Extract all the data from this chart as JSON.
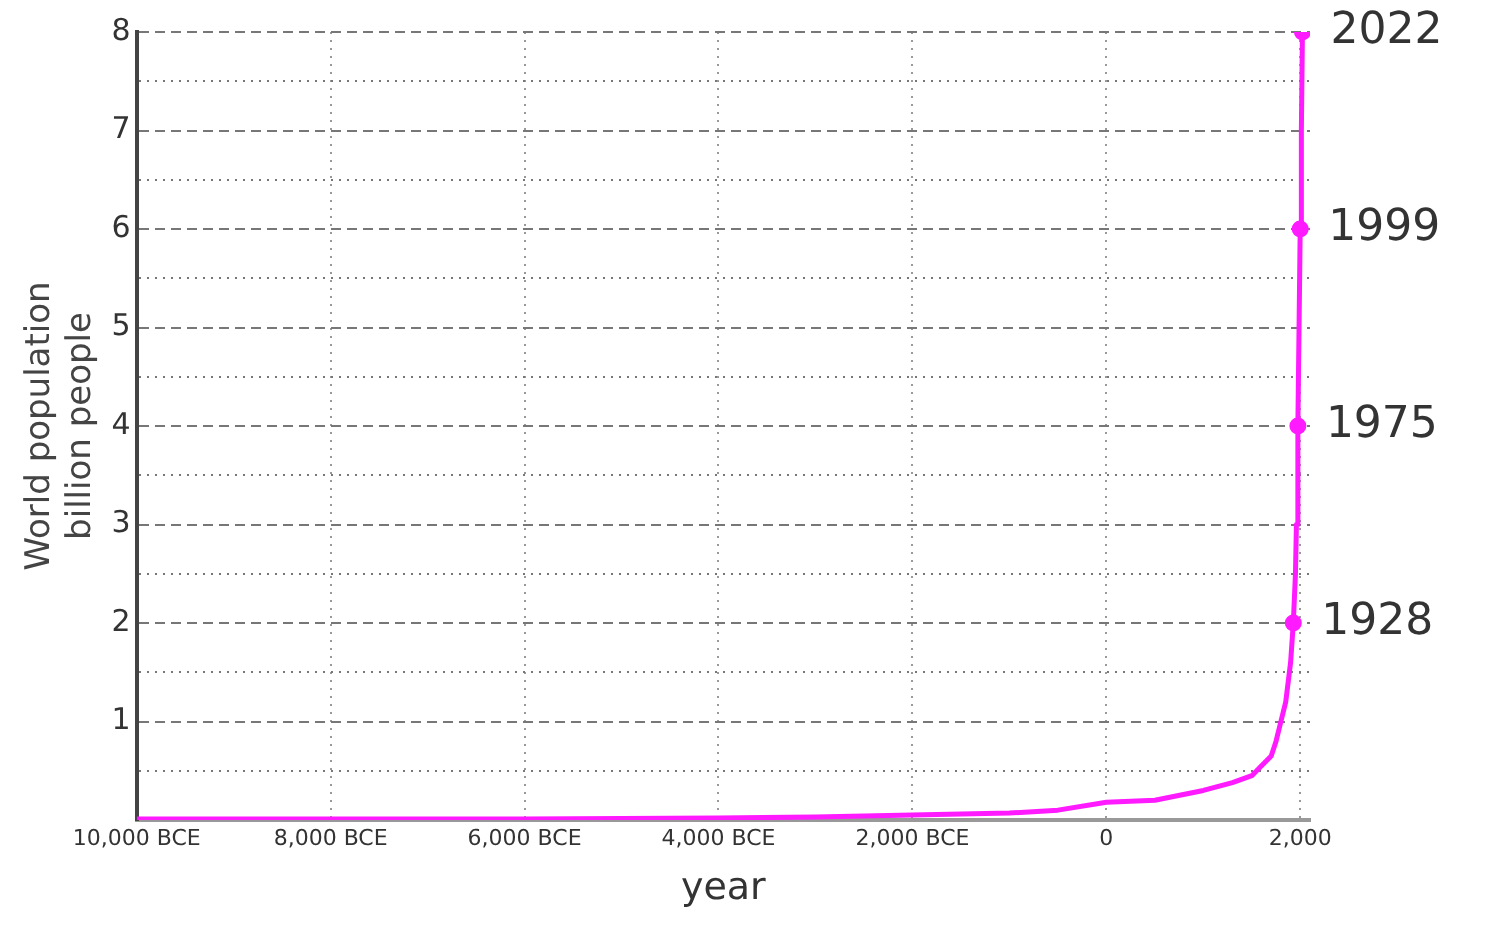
{
  "chart_data": {
    "type": "line",
    "xlabel": "year",
    "ylabel": "World population\nbillion people",
    "xlim": [
      -10000,
      2100
    ],
    "ylim": [
      0,
      8
    ],
    "xticks": [
      {
        "value": -10000,
        "label": "10,000 BCE"
      },
      {
        "value": -8000,
        "label": "8,000 BCE"
      },
      {
        "value": -6000,
        "label": "6,000 BCE"
      },
      {
        "value": -4000,
        "label": "4,000 BCE"
      },
      {
        "value": -2000,
        "label": "2,000 BCE"
      },
      0,
      {
        "value": 2000,
        "label": "2,000"
      }
    ],
    "yticks": [
      {
        "value": 0.5,
        "label": null
      },
      1,
      {
        "value": 1.5,
        "label": null
      },
      2,
      {
        "value": 2.5,
        "label": null
      },
      3,
      {
        "value": 3.5,
        "label": null
      },
      4,
      {
        "value": 4.5,
        "label": null
      },
      5,
      {
        "value": 5.5,
        "label": null
      },
      6,
      {
        "value": 6.5,
        "label": null
      },
      7,
      {
        "value": 7.5,
        "label": null
      },
      8
    ],
    "grid": true,
    "legend": false,
    "series": [
      {
        "color": "#ff1aff",
        "x": [
          -10000,
          -8000,
          -6000,
          -4000,
          -3000,
          -2000,
          -1000,
          -500,
          0,
          500,
          1000,
          1300,
          1500,
          1600,
          1700,
          1750,
          1800,
          1850,
          1900,
          1928,
          1950,
          1960,
          1975,
          1987,
          1999,
          2011,
          2022
        ],
        "values": [
          0.01,
          0.01,
          0.01,
          0.02,
          0.03,
          0.05,
          0.07,
          0.1,
          0.18,
          0.2,
          0.3,
          0.38,
          0.45,
          0.55,
          0.65,
          0.8,
          1,
          1.2,
          1.6,
          2,
          2.5,
          3,
          4,
          5,
          6,
          7,
          8
        ]
      },
      {
        "type": "scatter",
        "color": "#ff1aff",
        "marker": "circle",
        "x": [
          1928,
          1975,
          1999,
          2022
        ],
        "values": [
          2,
          4,
          6,
          8
        ]
      }
    ],
    "annotations": [
      {
        "text": "1928",
        "x": 1928,
        "y": 2
      },
      {
        "text": "1975",
        "x": 1975,
        "y": 4
      },
      {
        "text": "1999",
        "x": 1999,
        "y": 6
      },
      {
        "text": "2022",
        "x": 2022,
        "y": 8
      }
    ]
  }
}
